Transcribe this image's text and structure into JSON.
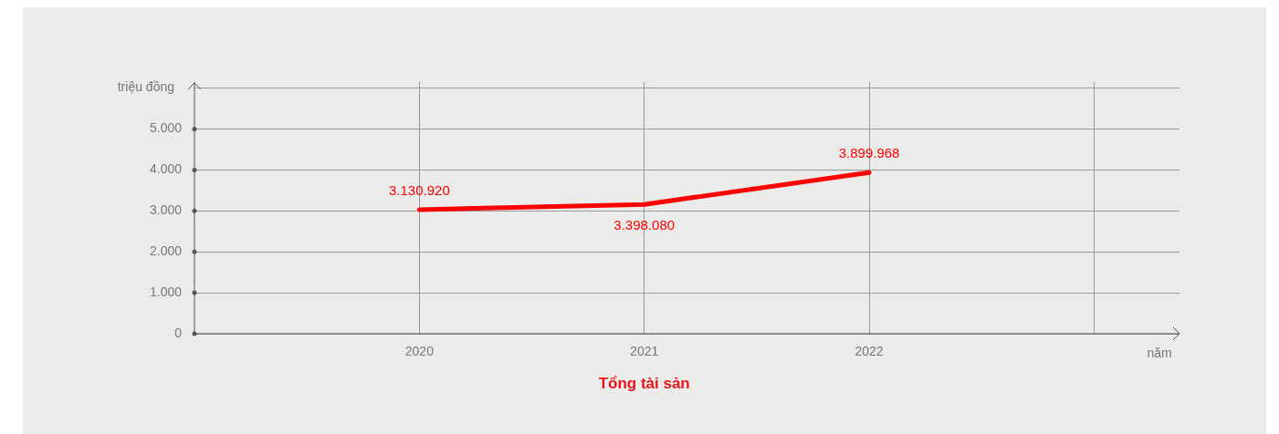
{
  "chart_data": {
    "type": "line",
    "title": "Tổng tài sản",
    "xlabel": "năm",
    "ylabel": "triệu đồng",
    "x": [
      2020,
      2021,
      2022
    ],
    "series": [
      {
        "color": "#ff0000",
        "values": [
          3030,
          3160,
          3940
        ]
      }
    ],
    "annotations": [
      {
        "text": "3.130.920",
        "x": 2020,
        "y": 3030
      },
      {
        "text": "3.398.080",
        "x": 2021,
        "y": 3160
      },
      {
        "text": "3.899.968",
        "x": 2022,
        "y": 3940
      }
    ],
    "xlim": [
      2019,
      2023.38
    ],
    "xticks": [
      2020,
      2021,
      2022,
      {
        "value": 2023,
        "label": null
      }
    ],
    "ylim": [
      0,
      6150
    ],
    "yticks": [
      {
        "value": 0,
        "label": "0"
      },
      {
        "value": 1000,
        "label": "1.000"
      },
      {
        "value": 2000,
        "label": "2.000"
      },
      {
        "value": 3000,
        "label": "3.000"
      },
      {
        "value": 4000,
        "label": "4.000"
      },
      {
        "value": 5000,
        "label": "5.000"
      },
      {
        "value": 6000,
        "label": null
      }
    ],
    "grid": true,
    "legend": false
  }
}
